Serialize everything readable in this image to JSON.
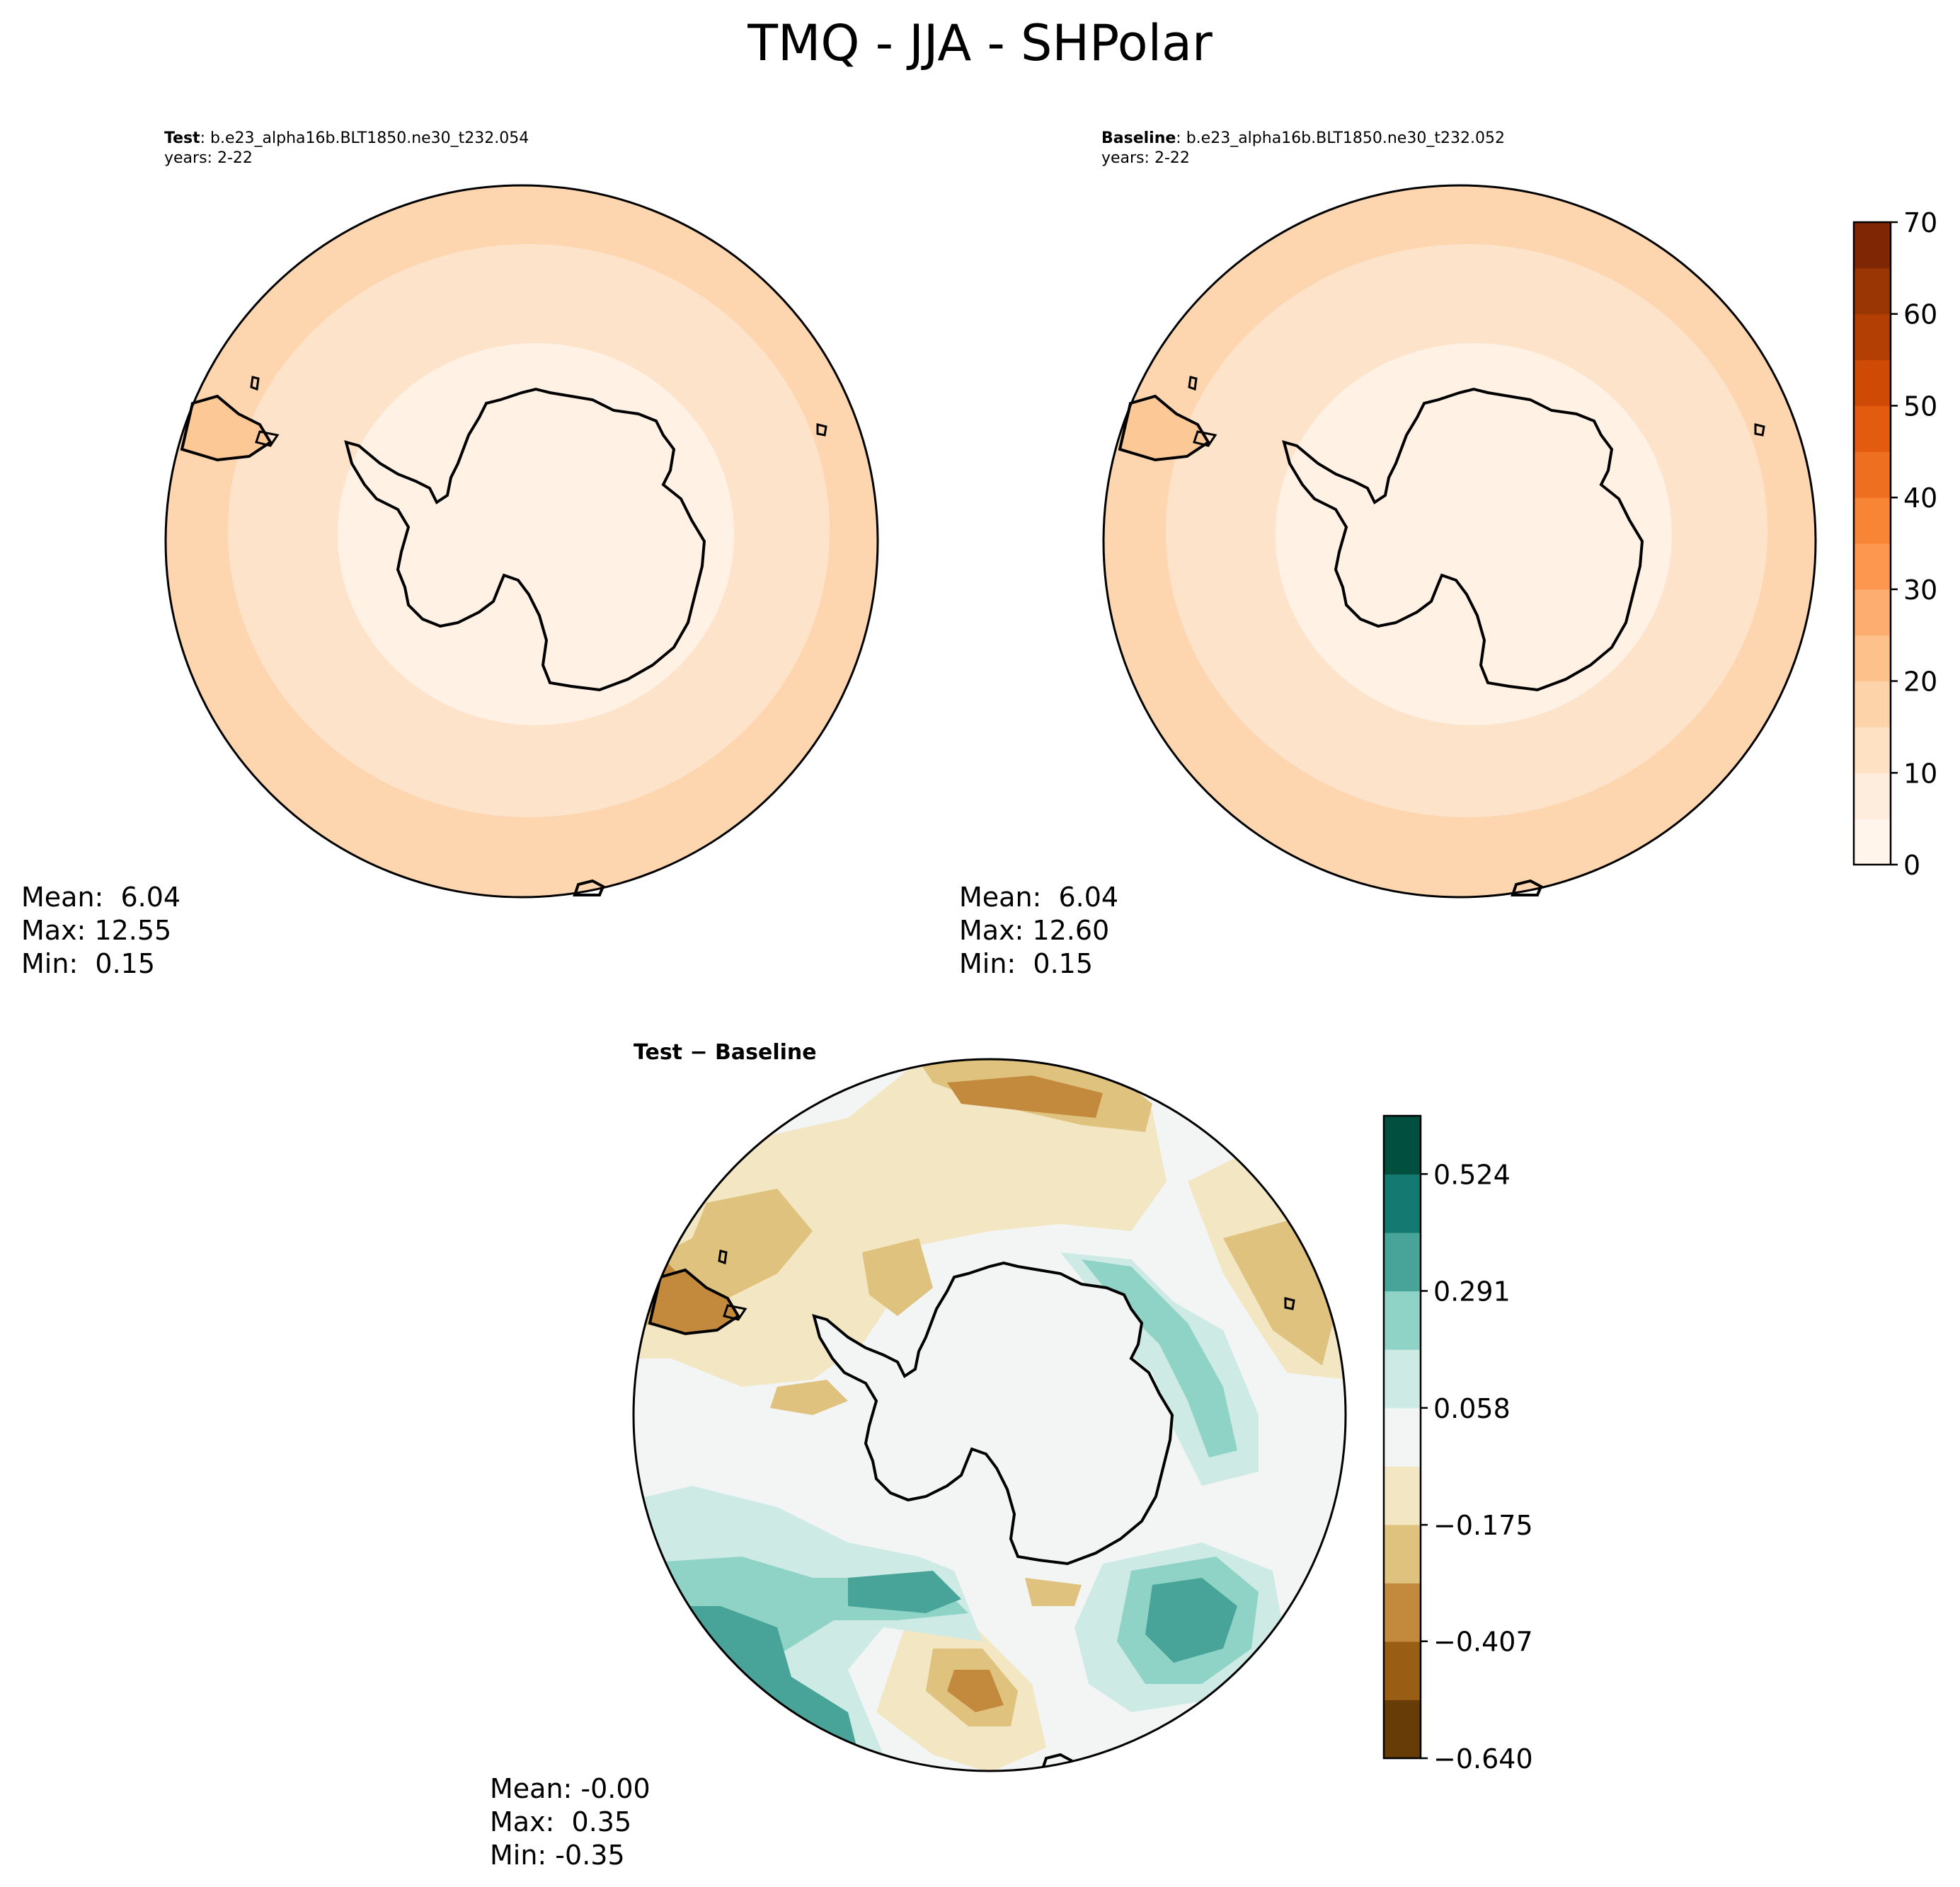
{
  "suptitle": "TMQ - JJA - SHPolar",
  "panels": {
    "test": {
      "label": "Test",
      "case": ": b.e23_alpha16b.BLT1850.ne30_t232.054",
      "years": "years: 2-22",
      "stats": {
        "mean": "Mean:  6.04",
        "max": "Max: 12.55",
        "min": "Min:  0.15"
      }
    },
    "baseline": {
      "label": "Baseline",
      "case": ": b.e23_alpha16b.BLT1850.ne30_t232.052",
      "years": "years: 2-22",
      "stats": {
        "mean": "Mean:  6.04",
        "max": "Max: 12.60",
        "min": "Min:  0.15"
      }
    },
    "diff": {
      "title": "Test − Baseline",
      "stats": {
        "mean": "Mean: -0.00",
        "max": "Max:  0.35",
        "min": "Min: -0.35"
      }
    }
  },
  "chart_data": [
    {
      "type": "heatmap",
      "projection": "south polar stereographic",
      "panel": "Test",
      "mean": 6.04,
      "max": 12.55,
      "min": 0.15,
      "colorbar": {
        "min": 0,
        "max": 70,
        "ticks": [
          0,
          10,
          20,
          30,
          40,
          50,
          60,
          70
        ],
        "levels": [
          0,
          5,
          10,
          15,
          20,
          25,
          30,
          35,
          40,
          45,
          50,
          55,
          60,
          65,
          70
        ],
        "colors": [
          "#fff5eb",
          "#feeddc",
          "#fee1c3",
          "#fdd3a9",
          "#fdc18b",
          "#fdad6f",
          "#fd9750",
          "#f88436",
          "#ef6f21",
          "#e35b0e",
          "#cf4b05",
          "#b43f04",
          "#9a3603",
          "#7f2704"
        ]
      }
    },
    {
      "type": "heatmap",
      "projection": "south polar stereographic",
      "panel": "Baseline",
      "mean": 6.04,
      "max": 12.6,
      "min": 0.15,
      "colorbar": {
        "min": 0,
        "max": 70,
        "ticks": [
          0,
          10,
          20,
          30,
          40,
          50,
          60,
          70
        ]
      }
    },
    {
      "type": "heatmap",
      "projection": "south polar stereographic",
      "panel": "Test − Baseline",
      "mean": -0.0,
      "max": 0.35,
      "min": -0.35,
      "colorbar": {
        "min": -0.64,
        "max": 0.64,
        "ticks": [
          "−0.640",
          "−0.407",
          "−0.175",
          "0.058",
          "0.291",
          "0.524"
        ],
        "tick_values": [
          -0.64,
          -0.407,
          -0.175,
          0.058,
          0.291,
          0.524
        ],
        "colors": [
          "#673c07",
          "#995d13",
          "#c38a3e",
          "#dfc27d",
          "#f2e6c3",
          "#f3f5f4",
          "#cdeae5",
          "#8ed3c6",
          "#48a498",
          "#147970",
          "#01503f"
        ]
      }
    }
  ]
}
